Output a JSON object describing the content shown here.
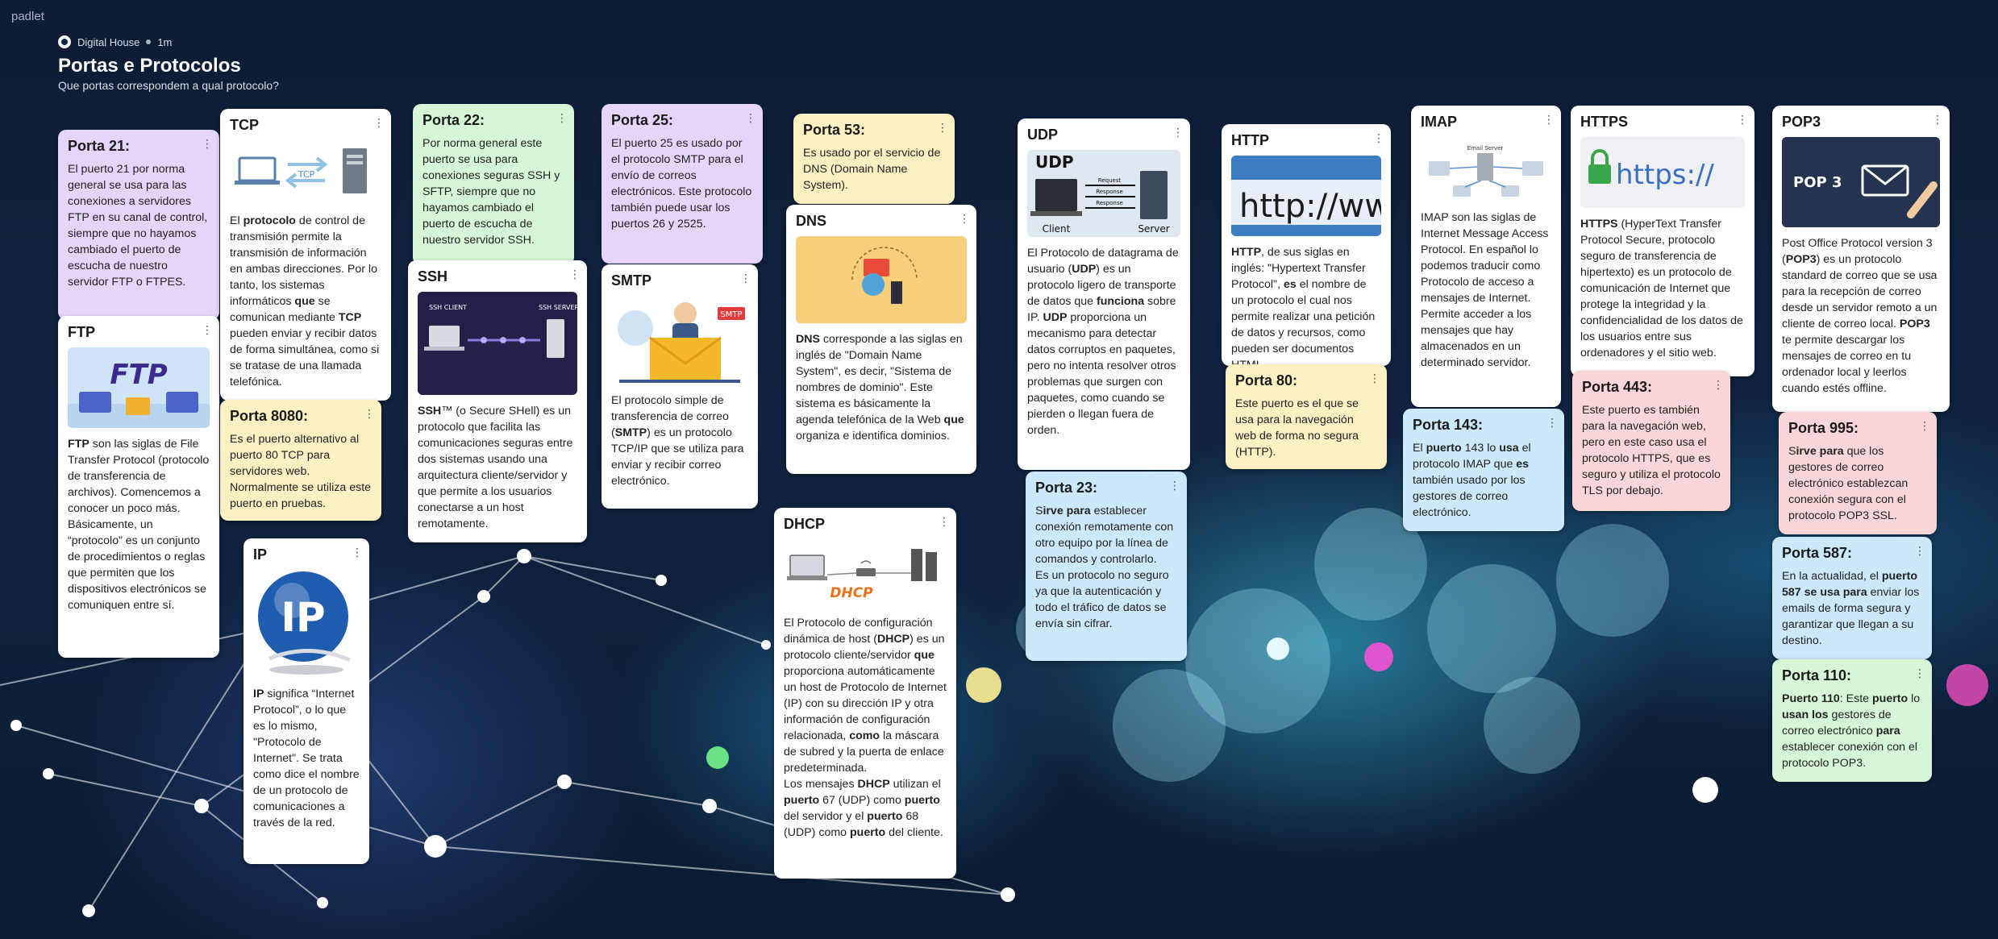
{
  "brand": "padlet",
  "org": {
    "name": "Digital House",
    "time": "1m"
  },
  "board": {
    "title": "Portas e Protocolos",
    "subtitle": "Que portas correspondem a qual protocolo?"
  },
  "colors": {
    "white": "#ffffff",
    "purple": "#e6d5fb",
    "green": "#d5f7d7",
    "yellow": "#fdf0c3",
    "blue": "#cbe9fb",
    "pink": "#fbd6d8"
  },
  "cards": {
    "porta21": {
      "title": "Porta 21:",
      "body": "El puerto 21 por norma general se usa para las conexiones a servidores FTP en su canal de control, siempre que no hayamos cambiado el puerto de escucha de nuestro servidor FTP o FTPES."
    },
    "ftp": {
      "title": "FTP",
      "b1": "FTP",
      "body": " son las siglas de File Transfer Protocol (protocolo de transferencia de archivos). Comencemos a conocer un poco más. Básicamente, un “protocolo” es un conjunto de procedimientos o reglas que permiten que los dispositivos electrónicos se comuniquen entre sí."
    },
    "tcp": {
      "title": "TCP",
      "t1": "El ",
      "b1": "protocolo",
      "t2": " de control de transmisión permite la transmisión de información en ambas direcciones. Por lo tanto, los sistemas informáticos ",
      "b2": "que",
      "t3": " se comunican mediante ",
      "b3": "TCP",
      "t4": " pueden enviar y recibir datos de forma simultánea, como si se tratase de una llamada telefónica."
    },
    "porta8080": {
      "title": "Porta 8080:",
      "body": "Es el puerto alternativo al puerto 80 TCP para servidores web. Normalmente se utiliza este puerto en pruebas."
    },
    "ip": {
      "title": "IP",
      "b1": "IP",
      "body": " significa “Internet Protocol”, o lo que es lo mismo, \"Protocolo de Internet\". Se trata como dice el nombre de un protocolo de comunicaciones a través de la red."
    },
    "porta22": {
      "title": "Porta 22:",
      "body": "Por norma general este puerto se usa para conexiones seguras SSH y SFTP, siempre que no hayamos cambiado el puerto de escucha de nuestro servidor SSH."
    },
    "ssh": {
      "title": "SSH",
      "b1": "SSH",
      "body": "™ (o Secure SHell) es un protocolo que facilita las comunicaciones seguras entre dos sistemas usando una arquitectura cliente/servidor y que permite a los usuarios conectarse a un host remotamente.",
      "img_left": "SSH CLIENT",
      "img_right": "SSH SERVER"
    },
    "porta25": {
      "title": "Porta 25:",
      "body": "El puerto 25 es usado por el protocolo SMTP para el envío de correos electrónicos. Este protocolo también puede usar los puertos 26 y 2525."
    },
    "smtp": {
      "title": "SMTP",
      "t1": "El protocolo simple de transferencia de correo (",
      "b1": "SMTP",
      "t2": ") es un protocolo TCP/IP que se utiliza para enviar y recibir correo electrónico.",
      "img_tag": "SMTP"
    },
    "porta53": {
      "title": "Porta 53:",
      "body": "Es usado por el servicio de DNS (Domain Name System)."
    },
    "dns": {
      "title": "DNS",
      "b1": "DNS",
      "t1": " corresponde a las siglas en inglés de \"Domain Name System\", es decir, \"Sistema de nombres de dominio\". Este sistema es básicamente la agenda telefónica de la Web ",
      "b2": "que",
      "t2": " organiza e identifica dominios."
    },
    "dhcp": {
      "title": "DHCP",
      "t1": "El Protocolo de configuración dinámica de host (",
      "b1": "DHCP",
      "t2": ") es un protocolo cliente/servidor ",
      "b2": "que",
      "t3": " proporciona automáticamente un host de Protocolo de Internet (IP) con su dirección IP y otra información de configuración relacionada, ",
      "b3": "como",
      "t4": " la máscara de subred y la puerta de enlace predeterminada.",
      "t5": "Los mensajes ",
      "b4": "DHCP",
      "t6": " utilizan el ",
      "b5": "puerto",
      "t7": " 67 (UDP) como ",
      "b6": "puerto",
      "t8": " del servidor y el ",
      "b7": "puerto",
      "t9": " 68 (UDP) como ",
      "b8": "puerto",
      "t10": " del cliente.",
      "img_tag": "DHCP"
    },
    "udp": {
      "title": "UDP",
      "t1": "El Protocolo de datagrama de usuario (",
      "b1": "UDP",
      "t2": ") es un protocolo ligero de transporte de datos que ",
      "b2": "funciona",
      "t3": " sobre IP. ",
      "b3": "UDP",
      "t4": " proporciona un mecanismo para detectar datos corruptos en paquetes, pero no intenta resolver otros problemas que surgen con paquetes, como cuando se pierden o llegan fuera de orden.",
      "img_title": "UDP",
      "img_client": "Client",
      "img_server": "Server",
      "img_req": "Request",
      "img_res1": "Response",
      "img_res2": "Response"
    },
    "porta23": {
      "title": "Porta 23:",
      "t1": "S",
      "b1": "irve para",
      "t2": " establecer conexión remotamente con otro equipo por la línea de comandos y controlarlo.",
      "t3": "Es un protocolo no seguro ya que la autenticación y todo el tráfico de datos se envía sin cifrar."
    },
    "http": {
      "title": "HTTP",
      "b1": "HTTP",
      "t1": ", de sus siglas en inglés: \"Hypertext Transfer Protocol\", ",
      "b2": "es",
      "t2": " el nombre de un protocolo el cual nos permite realizar una petición de datos y recursos, como pueden ser documentos HTML.",
      "img_text": "http://www"
    },
    "porta80": {
      "title": "Porta 80:",
      "body": "Este puerto es el que se usa para la navegación web de forma no segura (HTTP)."
    },
    "imap": {
      "title": "IMAP",
      "body": "IMAP son las siglas de Internet Message Access Protocol. En español lo podemos traducir como Protocolo de acceso a mensajes de Internet. Permite acceder a los mensajes que hay almacenados en un determinado servidor.",
      "img_label": "Email Server"
    },
    "porta143": {
      "title": "Porta 143:",
      "t1": "El ",
      "b1": "puerto",
      "t2": " 143 lo ",
      "b2": "usa",
      "t3": " el protocolo IMAP que ",
      "b3": "es",
      "t4": " también usado por los gestores de correo electrónico."
    },
    "https": {
      "title": "HTTPS",
      "b1": "HTTPS",
      "body": " (HyperText Transfer Protocol Secure, protocolo seguro de transferencia de hipertexto) es un protocolo de comunicación de Internet que protege la integridad y la confidencialidad de los datos de los usuarios entre sus ordenadores y el sitio web.",
      "img_text": "https://"
    },
    "porta443": {
      "title": "Porta 443:",
      "body": "Este puerto es también para la navegación web, pero en este caso usa el protocolo HTTPS, que es seguro y utiliza el protocolo TLS por debajo."
    },
    "pop3": {
      "title": "POP3",
      "t1": "Post Office Protocol version 3 (",
      "b1": "POP3",
      "t2": ") es un protocolo standard de correo que se usa para la recepción de correo desde un servidor remoto a un cliente de correo local. ",
      "b2": "POP3",
      "t3": " te permite descargar los mensajes de correo en tu ordenador local y leerlos cuando estés offline.",
      "img_text": "POP 3"
    },
    "porta995": {
      "title": "Porta 995:",
      "t1": "S",
      "b1": "irve para",
      "t2": " que los gestores de correo electrónico establezcan conexión segura con el protocolo POP3 SSL."
    },
    "porta587": {
      "title": "Porta 587:",
      "t1": "En la actualidad, el ",
      "b1": "puerto 587 se usa para",
      "t2": " enviar los emails de forma segura y garantizar que llegan a su destino."
    },
    "porta110": {
      "title": "Porta 110:",
      "b1": "Puerto 110",
      "t1": ": Este ",
      "b2": "puerto",
      "t2": " lo ",
      "b3": "usan los",
      "t3": " gestores de correo electrónico ",
      "b4": "para",
      "t4": " establecer conexión con el protocolo POP3."
    }
  }
}
